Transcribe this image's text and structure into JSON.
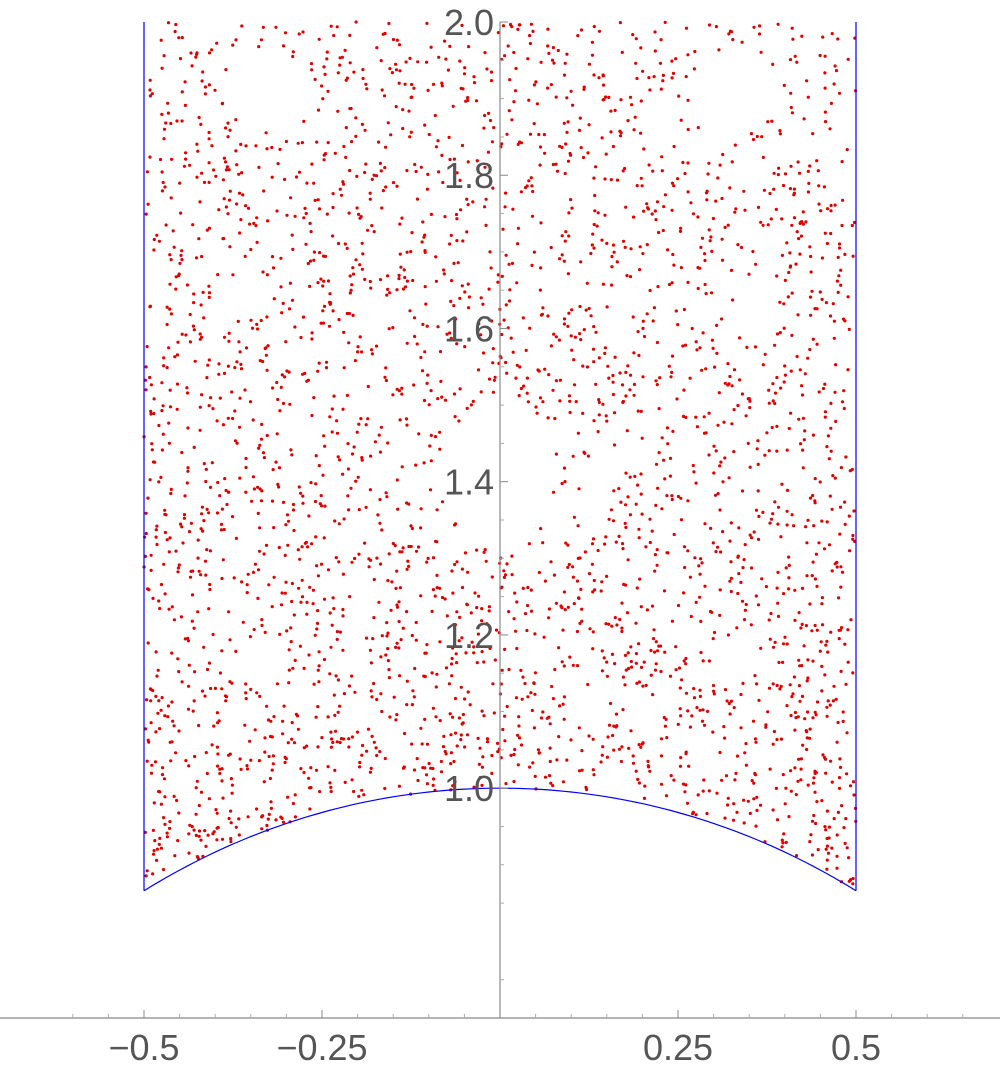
{
  "chart_data": {
    "type": "scatter",
    "title": "",
    "xlabel": "",
    "ylabel": "",
    "xlim": [
      -0.7,
      0.7
    ],
    "ylim": [
      0.7,
      2.0
    ],
    "x_ticks": [
      {
        "value": -0.5,
        "label": "−0.5"
      },
      {
        "value": -0.25,
        "label": "−0.25"
      },
      {
        "value": 0.25,
        "label": "0.25"
      },
      {
        "value": 0.5,
        "label": "0.5"
      }
    ],
    "y_ticks": [
      {
        "value": 1.0,
        "label": "1.0"
      },
      {
        "value": 1.2,
        "label": "1.2"
      },
      {
        "value": 1.4,
        "label": "1.4"
      },
      {
        "value": 1.6,
        "label": "1.6"
      },
      {
        "value": 1.8,
        "label": "1.8"
      },
      {
        "value": 2.0,
        "label": "2.0"
      }
    ],
    "grid": false,
    "boundary": {
      "color": "#0000ff",
      "left_line_x": -0.5,
      "right_line_x": 0.5,
      "arc": "unit circle x^2 + y^2 = 1 from x = -0.5 to x = 0.5",
      "y_top": 2.0
    },
    "points": {
      "color": "#e00000",
      "description": "points of the PSL(2,Z) orbit/lattice sample in the fundamental domain",
      "region": "|x| <= 0.5, x^2 + y^2 >= 1, y <= 2",
      "count_estimate": 3000,
      "holes": [
        {
          "x": 0.0,
          "y": 1.41,
          "rx": 0.075,
          "ry": 0.1
        },
        {
          "x": -0.33,
          "y": 1.91,
          "rx": 0.06,
          "ry": 0.05
        },
        {
          "x": 0.33,
          "y": 1.91,
          "rx": 0.06,
          "ry": 0.05
        },
        {
          "x": -0.33,
          "y": 1.17,
          "rx": 0.035,
          "ry": 0.03
        },
        {
          "x": 0.33,
          "y": 1.17,
          "rx": 0.035,
          "ry": 0.03
        },
        {
          "x": -0.2,
          "y": 1.1,
          "rx": 0.025,
          "ry": 0.022
        },
        {
          "x": 0.2,
          "y": 1.1,
          "rx": 0.025,
          "ry": 0.022
        },
        {
          "x": -0.36,
          "y": 1.64,
          "rx": 0.03,
          "ry": 0.03
        },
        {
          "x": 0.36,
          "y": 1.64,
          "rx": 0.03,
          "ry": 0.03
        }
      ]
    }
  }
}
